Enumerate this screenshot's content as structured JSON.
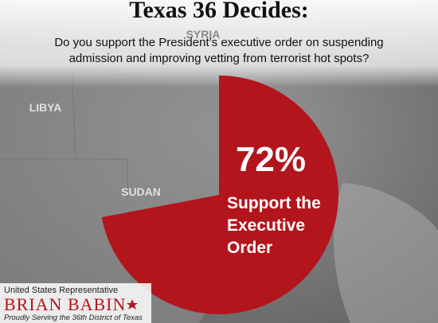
{
  "chart_data": {
    "type": "pie",
    "title": "Texas 36 Decides:",
    "subtitle": [
      "Do you support the President’s executive order on suspending",
      "admission and improving vetting from terrorist hot spots?"
    ],
    "values": [
      72
    ],
    "value_labels": [
      "72%"
    ],
    "label_lines": [
      "Support the",
      "Executive",
      "Order"
    ],
    "color": "#b3151d",
    "map_labels": [
      "SYRIA",
      "LIBYA",
      "SUDAN"
    ]
  },
  "footer": {
    "line1": "United States Representative",
    "name": "BRIAN BABIN",
    "tagline": "Proudly Serving the 36th District of Texas"
  }
}
